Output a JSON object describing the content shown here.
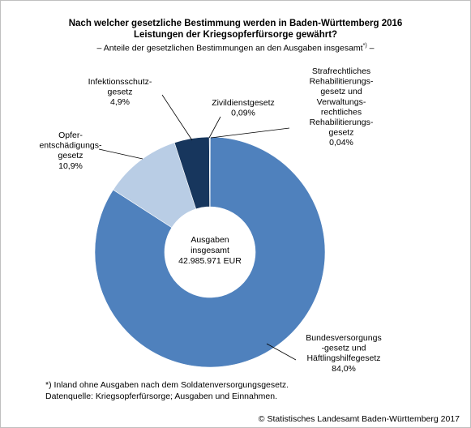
{
  "title_line1": "Nach welcher gesetzliche Bestimmung werden in Baden-Württemberg 2016",
  "title_line2": "Leistungen der Kriegsopferfürsorge gewährt?",
  "subtitle_text": "– Anteile der gesetzlichen Bestimmungen an den Ausgaben insgesamt",
  "subtitle_mark": "*)",
  "subtitle_tail": " –",
  "center_label": [
    "Ausgaben",
    "insgesamt",
    "42.985.971 EUR"
  ],
  "footnote": {
    "line1": "*) Inland ohne Ausgaben nach dem Soldatenversorgungsgesetz.",
    "line2": "Datenquelle: Kriegsopferfürsorge; Ausgaben und Einnahmen."
  },
  "copyright": "© Statistisches Landesamt Baden-Württemberg 2017",
  "chart_data": {
    "type": "pie",
    "variant": "donut",
    "unit": "%",
    "slices": [
      {
        "label": "Strafrechtliches Rehabilitierungsgesetz und Verwaltungsrechtliches Rehabilitierungsgesetz",
        "value": 0.04,
        "display": "0,04%",
        "color": "#1f9ed1",
        "label_lines": [
          "Strafrechtliches",
          "Rehabilitierungs-",
          "gesetz und",
          "Verwaltungs-",
          "rechtliches",
          "Rehabilitierungs-",
          "gesetz",
          "0,04%"
        ]
      },
      {
        "label": "Bundesversorgungsgesetz und Häftlingshilfegesetz",
        "value": 84.0,
        "display": "84,0%",
        "color": "#4f81bd",
        "label_lines": [
          "Bundesversorgungs",
          "-gesetz und",
          "Häftlingshilfegesetz",
          "84,0%"
        ]
      },
      {
        "label": "Opferentschädigungsgesetz",
        "value": 10.9,
        "display": "10,9%",
        "color": "#b9cde5",
        "label_lines": [
          "Opfer-",
          "entschädigungs-",
          "gesetz",
          "10,9%"
        ]
      },
      {
        "label": "Infektionsschutzgesetz",
        "value": 4.9,
        "display": "4,9%",
        "color": "#17365d",
        "label_lines": [
          "Infektionsschutz-",
          "gesetz",
          "4,9%"
        ]
      },
      {
        "label": "Zivildienstgesetz",
        "value": 0.09,
        "display": "0,09%",
        "color": "#8eb4e3",
        "label_lines": [
          "Zivildienstgesetz",
          "0,09%"
        ]
      }
    ]
  }
}
